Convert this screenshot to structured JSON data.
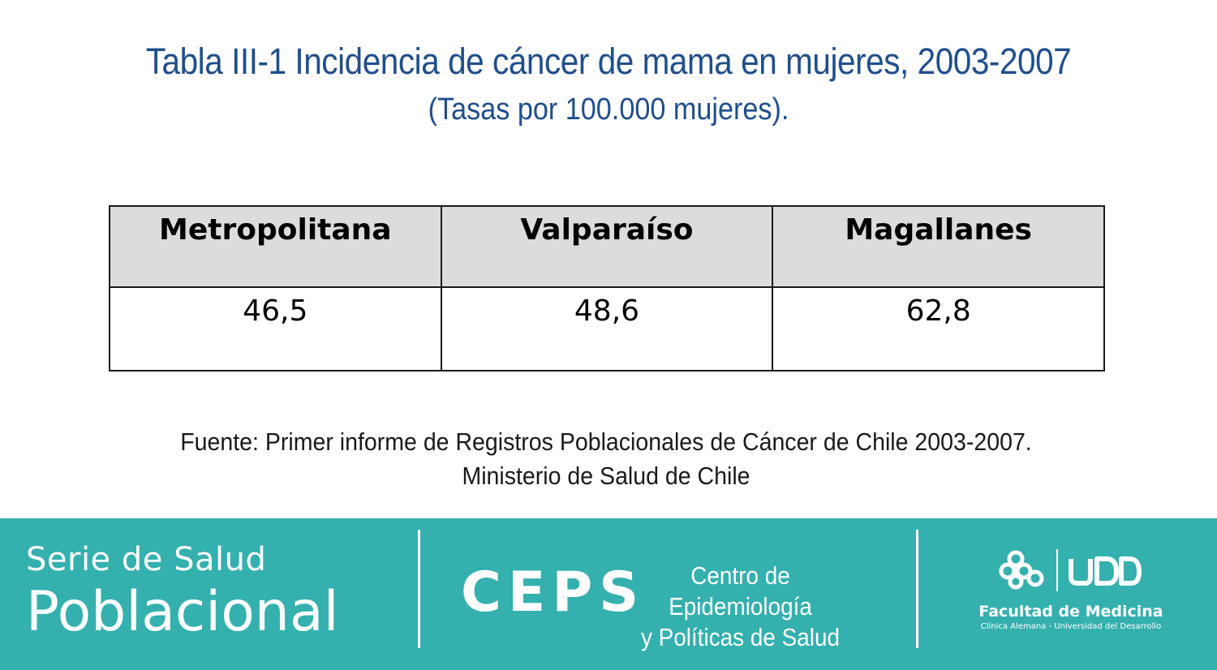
{
  "header": {
    "title": "Tabla III-1 Incidencia de cáncer de mama en mujeres, 2003-2007",
    "subtitle": "(Tasas por 100.000 mujeres)."
  },
  "table": {
    "columns": [
      "Metropolitana",
      "Valparaíso",
      "Magallanes"
    ],
    "rows": [
      [
        "46,5",
        "48,6",
        "62,8"
      ]
    ]
  },
  "source": {
    "line1": "Fuente: Primer informe de Registros Poblacionales de Cáncer de Chile 2003-2007.",
    "line2": "Ministerio de Salud de Chile"
  },
  "footer": {
    "series_line1": "Serie de Salud",
    "series_line2": "Poblacional",
    "ceps_acronym": "CEPS",
    "ceps_name_line1": "Centro de Epidemiología",
    "ceps_name_line2": "y Políticas de Salud",
    "udd_logo": "UDD",
    "faculty": "Facultad de Medicina",
    "faculty_sub": "Clínica Alemana - Universidad del Desarrollo",
    "background_color": "#34b0ae"
  },
  "colors": {
    "title": "#1f4e8c",
    "header_cell": "#dcdcdc"
  }
}
